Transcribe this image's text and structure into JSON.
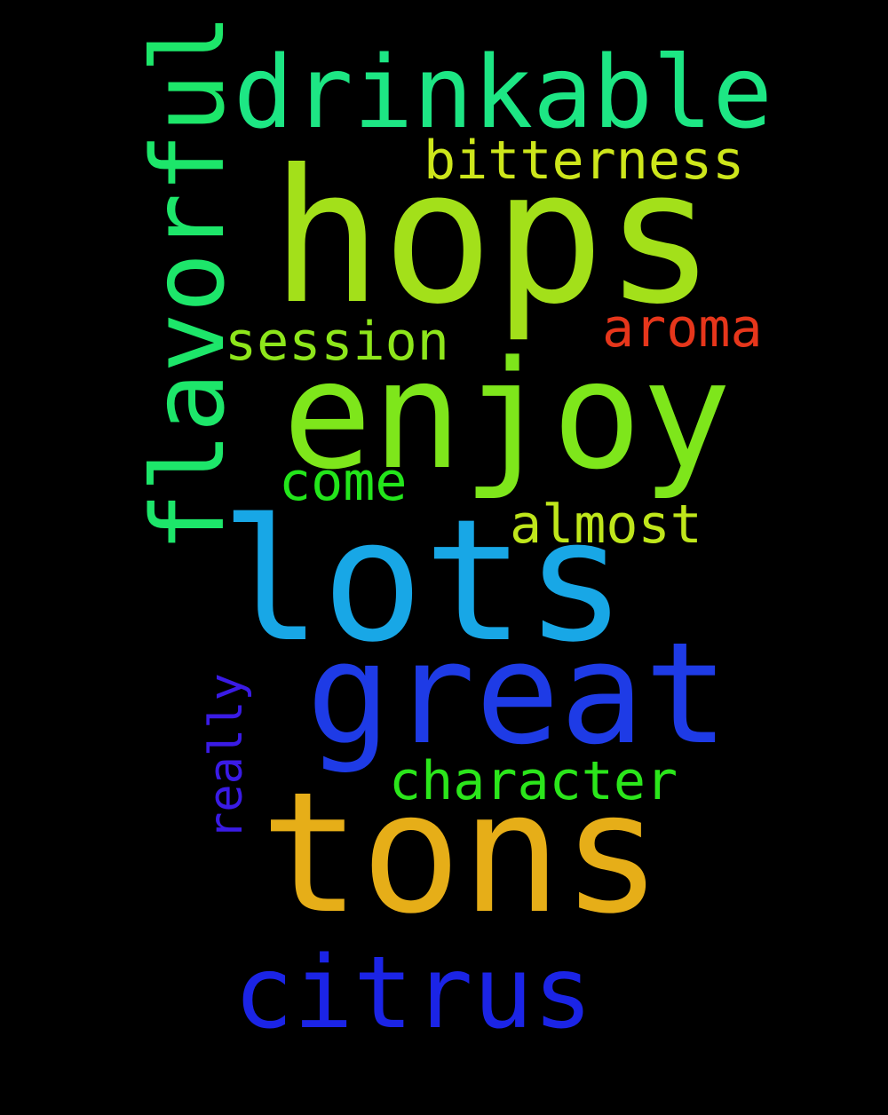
{
  "background": "#000000",
  "words": {
    "hops": {
      "text": "hops",
      "color": "#a3e01a"
    },
    "enjoy": {
      "text": "enjoy",
      "color": "#7ee61b"
    },
    "lots": {
      "text": "lots",
      "color": "#18a7e6"
    },
    "tons": {
      "text": "tons",
      "color": "#e6ae18"
    },
    "great": {
      "text": "great",
      "color": "#1e3be6"
    },
    "drinkable": {
      "text": "drinkable",
      "color": "#1de684"
    },
    "citrus": {
      "text": "citrus",
      "color": "#1b24e6"
    },
    "flavorful": {
      "text": "flavorful",
      "color": "#1de66a"
    },
    "bitterness": {
      "text": "bitterness",
      "color": "#cde61b"
    },
    "session": {
      "text": "session",
      "color": "#8ee61b"
    },
    "aroma": {
      "text": "aroma",
      "color": "#e6361b"
    },
    "come": {
      "text": "come",
      "color": "#23e61b"
    },
    "almost": {
      "text": "almost",
      "color": "#bfe61b"
    },
    "character": {
      "text": "character",
      "color": "#2be61b"
    },
    "really": {
      "text": "really",
      "color": "#3a1be6"
    }
  }
}
